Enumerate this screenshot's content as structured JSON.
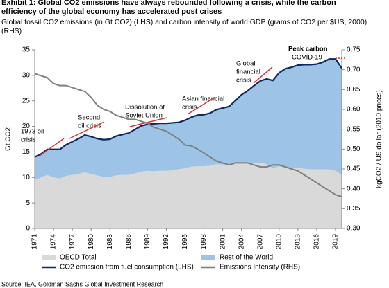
{
  "chart_data": {
    "type": "area",
    "title": [
      "Exhibit 1: Global CO2 emissions have always rebounded following a crisis, while the carbon",
      "efficiency of the global economy has accelerated post crises"
    ],
    "subtitle": [
      "Global fossil CO2 emissions (in Gt CO2) (LHS) and carbon intensity of world GDP (grams of CO2 per $US, 2000)",
      "(RHS)"
    ],
    "ylabel": "Gt CO2",
    "y2label": "kgCO2 / US dollar (2010 prices)",
    "source": "Source: IEA, Goldman Sachs Global Investment Research",
    "x": [
      1971,
      1972,
      1973,
      1974,
      1975,
      1976,
      1977,
      1978,
      1979,
      1980,
      1981,
      1982,
      1983,
      1984,
      1985,
      1986,
      1987,
      1988,
      1989,
      1990,
      1991,
      1992,
      1993,
      1994,
      1995,
      1996,
      1997,
      1998,
      1999,
      2000,
      2001,
      2002,
      2003,
      2004,
      2005,
      2006,
      2007,
      2008,
      2009,
      2010,
      2011,
      2012,
      2013,
      2014,
      2015,
      2016,
      2017,
      2018,
      2019,
      2020
    ],
    "xlim": [
      1971,
      2020
    ],
    "xticks": [
      1971,
      1974,
      1977,
      1980,
      1983,
      1986,
      1989,
      1992,
      1995,
      1998,
      2001,
      2004,
      2007,
      2010,
      2013,
      2016,
      2019
    ],
    "ylim": [
      0,
      35
    ],
    "yticks": [
      0,
      5,
      10,
      15,
      20,
      25,
      30,
      35
    ],
    "y2lim": [
      0.3,
      0.75
    ],
    "y2ticks": [
      {
        "value": 0.3,
        "label": "0.30"
      },
      {
        "value": 0.35,
        "label": "0.35"
      },
      {
        "value": 0.4,
        "label": "0.40"
      },
      {
        "value": 0.45,
        "label": "0.45"
      },
      {
        "value": 0.5,
        "label": "0.50"
      },
      {
        "value": 0.55,
        "label": "0.55"
      },
      {
        "value": 0.6,
        "label": "0.60"
      },
      {
        "value": 0.65,
        "label": "0.65"
      },
      {
        "value": 0.7,
        "label": "0.70"
      },
      {
        "value": 0.75,
        "label": "0.75"
      }
    ],
    "series": [
      {
        "name": "OECD Total",
        "kind": "area",
        "color": "#d9d9d9",
        "values": [
          9.5,
          10,
          10.5,
          10,
          9.8,
          10.3,
          10.5,
          10.7,
          11,
          10.7,
          10.4,
          10.1,
          10.1,
          10.4,
          10.5,
          10.5,
          10.8,
          11.1,
          11.3,
          11.2,
          11.3,
          11.3,
          11.4,
          11.6,
          11.8,
          12.1,
          12.2,
          12.2,
          12.3,
          12.6,
          12.5,
          12.6,
          12.8,
          12.9,
          12.9,
          12.8,
          12.9,
          12.6,
          11.8,
          12.2,
          12,
          11.8,
          11.9,
          11.7,
          11.6,
          11.6,
          11.6,
          11.6,
          11.3,
          10.5
        ]
      },
      {
        "name": "Rest of the World",
        "kind": "area",
        "color": "#9dc3e6",
        "values": [
          4.5,
          4.6,
          5.0,
          5.5,
          5.7,
          6.1,
          6.5,
          6.9,
          7.3,
          7.3,
          7.2,
          7.3,
          7.4,
          7.7,
          7.9,
          8.2,
          8.6,
          9.0,
          9.1,
          9.3,
          9.3,
          9.3,
          9.3,
          9.2,
          9.4,
          9.7,
          10.0,
          10.1,
          10.3,
          10.7,
          11.1,
          11.3,
          12.2,
          13.3,
          14.1,
          15.2,
          16.0,
          16.7,
          17.2,
          18.3,
          19.3,
          19.8,
          20.1,
          20.4,
          20.5,
          20.6,
          21.0,
          21.6,
          21.9,
          20.9
        ]
      },
      {
        "name": "CO2 emission from fuel consumption (LHS)",
        "kind": "line",
        "color": "#0d2a5c",
        "values": [
          14,
          14.6,
          15.5,
          15.5,
          15.5,
          16.4,
          17,
          17.6,
          18.3,
          18,
          17.6,
          17.4,
          17.5,
          18.1,
          18.4,
          18.7,
          19.4,
          20.1,
          20.4,
          20.5,
          20.6,
          20.6,
          20.7,
          20.8,
          21.2,
          21.8,
          22.2,
          22.3,
          22.6,
          23.3,
          23.6,
          23.9,
          25,
          26.2,
          27,
          28,
          28.9,
          29.3,
          29,
          30.5,
          31.3,
          31.6,
          32,
          32.1,
          32.1,
          32.2,
          32.6,
          33.2,
          33.2,
          31.4
        ]
      },
      {
        "name": "Emissions Intensity (RHS)",
        "kind": "line",
        "axis": "y2",
        "color": "#7f7f7f",
        "values": [
          0.69,
          0.685,
          0.68,
          0.665,
          0.66,
          0.66,
          0.655,
          0.65,
          0.645,
          0.63,
          0.61,
          0.6,
          0.595,
          0.585,
          0.58,
          0.575,
          0.575,
          0.57,
          0.565,
          0.555,
          0.55,
          0.545,
          0.535,
          0.525,
          0.51,
          0.508,
          0.5,
          0.49,
          0.48,
          0.47,
          0.465,
          0.46,
          0.465,
          0.465,
          0.465,
          0.46,
          0.455,
          0.455,
          0.46,
          0.46,
          0.455,
          0.45,
          0.445,
          0.435,
          0.425,
          0.415,
          0.405,
          0.395,
          0.385,
          0.38
        ]
      }
    ],
    "annotations": [
      {
        "text": [
          "1973 oil",
          "crisis"
        ]
      },
      {
        "text": [
          "Second",
          "oil crisis"
        ]
      },
      {
        "text": [
          "Dissolution of",
          "Soviet Union"
        ]
      },
      {
        "text": [
          "Asian financial",
          "crisis"
        ]
      },
      {
        "text": [
          "Global",
          "financial",
          "crisis"
        ]
      },
      {
        "text": [
          "Peak carbon"
        ]
      },
      {
        "text": [
          "COVID-19"
        ]
      }
    ]
  }
}
